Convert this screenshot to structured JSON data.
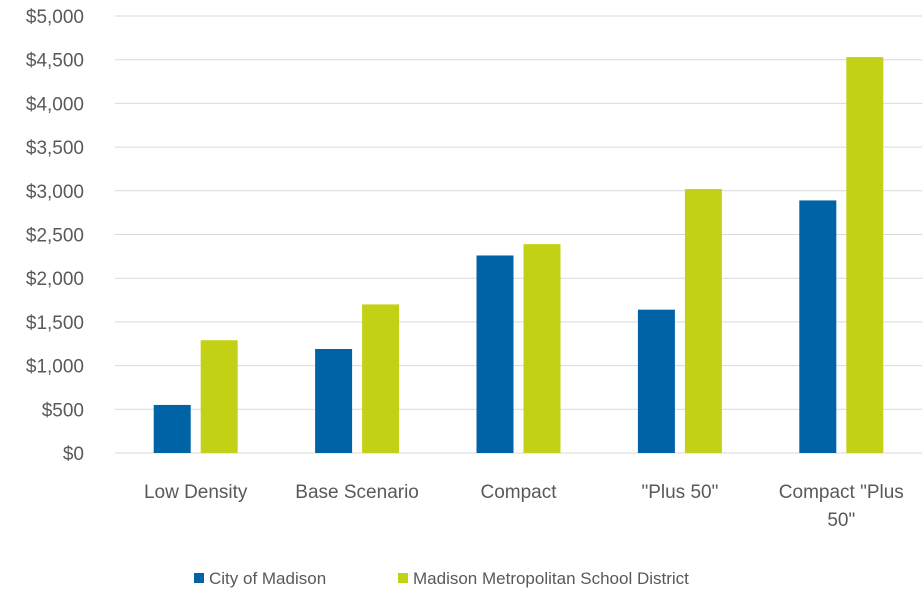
{
  "chart_data": {
    "type": "bar",
    "title": "",
    "xlabel": "",
    "ylabel": "",
    "categories": [
      [
        "Low Density"
      ],
      [
        "Base Scenario"
      ],
      [
        "Compact"
      ],
      [
        "\"Plus 50\""
      ],
      [
        "Compact \"Plus",
        "50\""
      ]
    ],
    "series": [
      {
        "name": "City of Madison",
        "color": "#0063a6",
        "values": [
          550,
          1190,
          2260,
          1640,
          2890
        ]
      },
      {
        "name": "Madison Metropolitan School District",
        "color": "#c3d116",
        "values": [
          1290,
          1700,
          2390,
          3020,
          4530
        ]
      }
    ],
    "ylim": [
      0,
      5000
    ],
    "yticks": [
      0,
      500,
      1000,
      1500,
      2000,
      2500,
      3000,
      3500,
      4000,
      4500,
      5000
    ],
    "ytick_labels": [
      "$0",
      "$500",
      "$1,000",
      "$1,500",
      "$2,000",
      "$2,500",
      "$3,000",
      "$3,500",
      "$4,000",
      "$4,500",
      "$5,000"
    ],
    "grid": true,
    "legend_position": "bottom"
  }
}
